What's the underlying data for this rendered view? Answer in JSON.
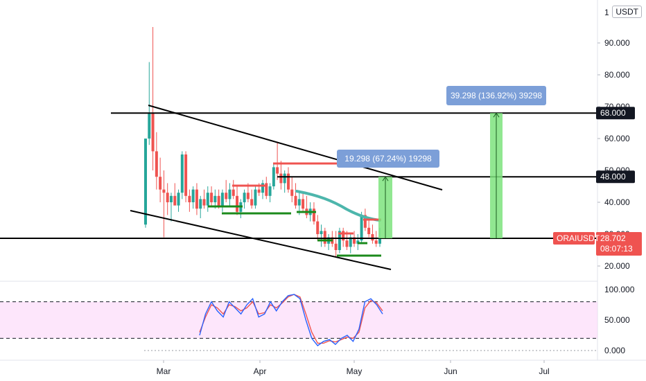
{
  "header": {
    "currency": "USDT",
    "currency_prefix": "1"
  },
  "chart_data": {
    "type": "candlestick",
    "symbol": "ORAIUSDT",
    "last_price": "28.702",
    "countdown": "08:07:13",
    "price_axis": {
      "range": [
        14,
        102
      ],
      "ticks": [
        "20.000",
        "30.000",
        "40.000",
        "50.000",
        "60.000",
        "70.000",
        "80.000",
        "90.000"
      ]
    },
    "time_axis": {
      "labels": [
        "Mar",
        "Apr",
        "May",
        "Jun",
        "Jul"
      ]
    },
    "levels": [
      {
        "label": "68.000",
        "value": 68
      },
      {
        "label": "48.000",
        "value": 48
      },
      {
        "label": "28.702",
        "value": 28.702
      }
    ],
    "measurements": [
      {
        "text": "19.298 (67.24%) 19298",
        "from": 28.702,
        "to": 48
      },
      {
        "text": "39.298 (136.92%) 39298",
        "from": 28.702,
        "to": 68
      }
    ],
    "candles_approx": [
      {
        "o": 33,
        "h": 60,
        "l": 32,
        "c": 60
      },
      {
        "o": 60,
        "h": 84,
        "l": 58,
        "c": 68
      },
      {
        "o": 68,
        "h": 95,
        "l": 50,
        "c": 56
      },
      {
        "o": 56,
        "h": 62,
        "l": 44,
        "c": 48
      },
      {
        "o": 48,
        "h": 54,
        "l": 40,
        "c": 44
      },
      {
        "o": 44,
        "h": 50,
        "l": 29,
        "c": 43
      },
      {
        "o": 43,
        "h": 46,
        "l": 36,
        "c": 40
      },
      {
        "o": 40,
        "h": 43,
        "l": 34,
        "c": 42
      },
      {
        "o": 42,
        "h": 46,
        "l": 39,
        "c": 39
      },
      {
        "o": 39,
        "h": 44,
        "l": 37,
        "c": 43
      },
      {
        "o": 43,
        "h": 56,
        "l": 41,
        "c": 55
      },
      {
        "o": 55,
        "h": 56,
        "l": 40,
        "c": 42
      },
      {
        "o": 42,
        "h": 44,
        "l": 37,
        "c": 40
      },
      {
        "o": 40,
        "h": 45,
        "l": 38,
        "c": 44
      },
      {
        "o": 44,
        "h": 46,
        "l": 36,
        "c": 38
      },
      {
        "o": 38,
        "h": 42,
        "l": 35,
        "c": 41
      },
      {
        "o": 41,
        "h": 44,
        "l": 38,
        "c": 39
      },
      {
        "o": 39,
        "h": 45,
        "l": 37,
        "c": 43
      },
      {
        "o": 43,
        "h": 45,
        "l": 39,
        "c": 40
      },
      {
        "o": 40,
        "h": 44,
        "l": 38,
        "c": 42
      },
      {
        "o": 42,
        "h": 44,
        "l": 38,
        "c": 39
      },
      {
        "o": 39,
        "h": 44,
        "l": 37,
        "c": 43
      },
      {
        "o": 43,
        "h": 47,
        "l": 40,
        "c": 41
      },
      {
        "o": 41,
        "h": 46,
        "l": 39,
        "c": 44
      },
      {
        "o": 44,
        "h": 47,
        "l": 41,
        "c": 42
      },
      {
        "o": 42,
        "h": 45,
        "l": 36,
        "c": 37
      },
      {
        "o": 37,
        "h": 41,
        "l": 35,
        "c": 40
      },
      {
        "o": 40,
        "h": 44,
        "l": 38,
        "c": 43
      },
      {
        "o": 43,
        "h": 46,
        "l": 40,
        "c": 41
      },
      {
        "o": 41,
        "h": 44,
        "l": 38,
        "c": 39
      },
      {
        "o": 39,
        "h": 45,
        "l": 38,
        "c": 44
      },
      {
        "o": 44,
        "h": 46,
        "l": 42,
        "c": 43
      },
      {
        "o": 43,
        "h": 47,
        "l": 41,
        "c": 46
      },
      {
        "o": 46,
        "h": 48,
        "l": 41,
        "c": 42
      },
      {
        "o": 42,
        "h": 46,
        "l": 40,
        "c": 45
      },
      {
        "o": 45,
        "h": 52,
        "l": 44,
        "c": 51
      },
      {
        "o": 51,
        "h": 59,
        "l": 47,
        "c": 49
      },
      {
        "o": 49,
        "h": 53,
        "l": 44,
        "c": 46
      },
      {
        "o": 46,
        "h": 50,
        "l": 43,
        "c": 49
      },
      {
        "o": 49,
        "h": 51,
        "l": 43,
        "c": 44
      },
      {
        "o": 44,
        "h": 48,
        "l": 40,
        "c": 42
      },
      {
        "o": 42,
        "h": 46,
        "l": 38,
        "c": 39
      },
      {
        "o": 39,
        "h": 43,
        "l": 36,
        "c": 41
      },
      {
        "o": 41,
        "h": 43,
        "l": 37,
        "c": 38
      },
      {
        "o": 38,
        "h": 42,
        "l": 35,
        "c": 36
      },
      {
        "o": 36,
        "h": 40,
        "l": 34,
        "c": 38
      },
      {
        "o": 38,
        "h": 40,
        "l": 33,
        "c": 34
      },
      {
        "o": 34,
        "h": 36,
        "l": 28,
        "c": 30
      },
      {
        "o": 30,
        "h": 33,
        "l": 26,
        "c": 31
      },
      {
        "o": 31,
        "h": 32,
        "l": 26,
        "c": 27
      },
      {
        "o": 27,
        "h": 30,
        "l": 25,
        "c": 29
      },
      {
        "o": 29,
        "h": 31,
        "l": 26,
        "c": 27
      },
      {
        "o": 27,
        "h": 31,
        "l": 23,
        "c": 25
      },
      {
        "o": 25,
        "h": 32,
        "l": 24,
        "c": 31
      },
      {
        "o": 31,
        "h": 32,
        "l": 26,
        "c": 28
      },
      {
        "o": 28,
        "h": 31,
        "l": 25,
        "c": 26
      },
      {
        "o": 26,
        "h": 30,
        "l": 24,
        "c": 29
      },
      {
        "o": 29,
        "h": 31,
        "l": 26,
        "c": 27
      },
      {
        "o": 27,
        "h": 30,
        "l": 25,
        "c": 28
      },
      {
        "o": 28,
        "h": 37,
        "l": 27,
        "c": 36
      },
      {
        "o": 36,
        "h": 38,
        "l": 31,
        "c": 32
      },
      {
        "o": 32,
        "h": 35,
        "l": 29,
        "c": 30
      },
      {
        "o": 30,
        "h": 33,
        "l": 27,
        "c": 28
      },
      {
        "o": 28,
        "h": 31,
        "l": 26,
        "c": 27
      },
      {
        "o": 27,
        "h": 32,
        "l": 26,
        "c": 28.7
      }
    ],
    "oscillator": {
      "ticks": [
        "0.000",
        "50.000",
        "100.000"
      ],
      "band": [
        20,
        80
      ],
      "k": [
        25,
        60,
        80,
        65,
        55,
        80,
        70,
        60,
        75,
        85,
        55,
        60,
        80,
        65,
        80,
        90,
        92,
        85,
        50,
        20,
        8,
        15,
        18,
        10,
        20,
        25,
        15,
        35,
        80,
        85,
        75,
        60
      ],
      "d": [
        30,
        55,
        75,
        70,
        60,
        75,
        72,
        65,
        70,
        80,
        60,
        62,
        75,
        70,
        78,
        88,
        92,
        88,
        60,
        30,
        12,
        12,
        16,
        14,
        18,
        22,
        20,
        30,
        70,
        82,
        78,
        65
      ]
    }
  },
  "colors": {
    "up": "#26a69a",
    "down": "#ef5350",
    "level_line": "#000000",
    "tag_bg": "#131722",
    "price_tag_bg": "#ef5350",
    "measure_bg": "#7c9fd8",
    "measure_fill": "#7ee37e",
    "osc_band": "#fbd6f8"
  }
}
